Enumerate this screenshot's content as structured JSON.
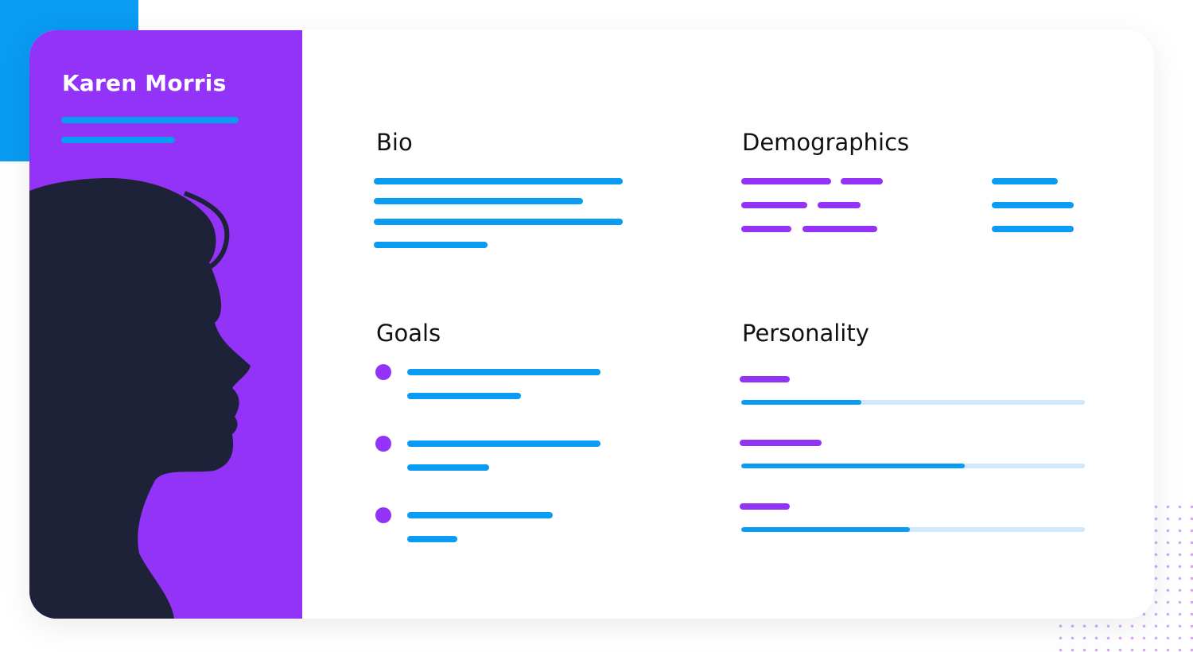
{
  "colors": {
    "primary": "#9433f8",
    "accent": "#0a9bf2",
    "silhouette": "#1d2238",
    "track": "#cfe8fb",
    "dot_pattern": "#d7a6f5"
  },
  "profile": {
    "name": "Karen Morris",
    "avatar_icon": "woman-profile-silhouette-icon"
  },
  "sections": {
    "bio": {
      "title": "Bio"
    },
    "demographics": {
      "title": "Demographics"
    },
    "goals": {
      "title": "Goals",
      "bullet_icon": "bullet-dot-icon",
      "items": 3
    },
    "personality": {
      "title": "Personality",
      "traits": [
        {
          "level": 0.35
        },
        {
          "level": 0.65
        },
        {
          "level": 0.49
        }
      ]
    }
  }
}
